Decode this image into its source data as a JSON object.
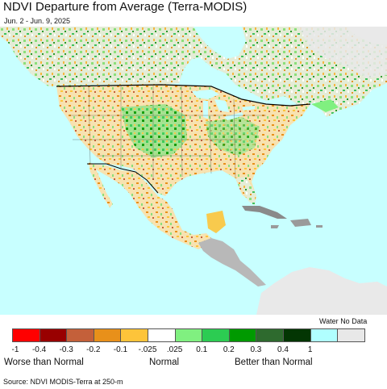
{
  "title": "NDVI Departure from Average (Terra-MODIS)",
  "date_range": "Jun. 2 - Jun. 9, 2025",
  "map": {
    "region": "North America",
    "ocean_color": "#c8ffff",
    "no_data_color": "#e9e9e9",
    "land_base_color": "#e7e7e7"
  },
  "legend": {
    "water_label": "Water",
    "no_data_label": "No Data",
    "colors": [
      "#ff0000",
      "#990000",
      "#c4603a",
      "#e8901a",
      "#fdc43a",
      "#ffffff",
      "#80f080",
      "#2ccc52",
      "#009a00",
      "#2e6a2e",
      "#033603",
      "#b0ffff",
      "#e8e8e8"
    ],
    "ticks": [
      "-1",
      "-0.4",
      "-0.3",
      "-0.2",
      "-0.1",
      "-.025",
      ".025",
      "0.1",
      "0.2",
      "0.3",
      "0.4",
      "1"
    ],
    "categories": {
      "worse": "Worse than Normal",
      "normal": "Normal",
      "better": "Better than Normal"
    }
  },
  "source": "Source: NDVI MODIS-Terra at 250-m"
}
